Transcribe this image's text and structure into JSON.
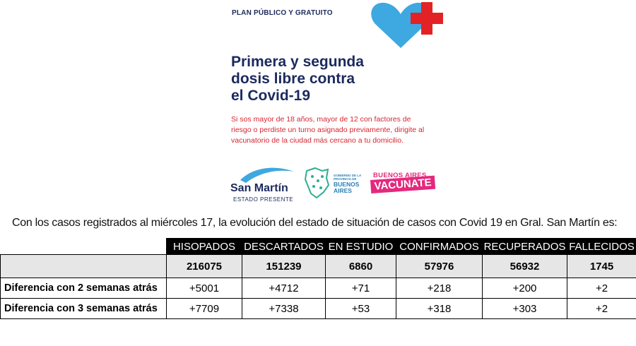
{
  "poster": {
    "plan_label": "PLAN PÚBLICO Y GRATUITO",
    "headline_lines": [
      "Primera y segunda",
      "dosis libre contra",
      "el Covid-19"
    ],
    "subtext_lines": [
      "Si sos mayor de 18 años, mayor de 12 con factores de",
      "riesgo o perdiste un turno asignado previamente, dirigite al",
      "vacunatorio de la ciudad más cercano a tu domicilio."
    ],
    "logos": {
      "san_martin": {
        "name": "San Martín",
        "tagline": "ESTADO PRESENTE"
      },
      "province": {
        "gov_lines": [
          "GOBIERNO DE LA",
          "PROVINCIA DE"
        ],
        "name_lines": [
          "BUENOS",
          "AIRES"
        ]
      },
      "vacunate": {
        "top": "BUENOS AIRES",
        "main": "VACUNATE"
      }
    },
    "colors": {
      "navy": "#1b2a5e",
      "red": "#d7262f",
      "heart_blue": "#3ea8e0",
      "cross_red": "#e32226",
      "pink": "#e4297d"
    }
  },
  "caption": "Con los casos registrados al  miércoles 17, la evolución del  estado de situación de casos con Covid 19 en Gral. San Martín es:",
  "table": {
    "columns": [
      "HISOPADOS",
      "DESCARTADOS",
      "EN ESTUDIO",
      "CONFIRMADOS",
      "RECUPERADOS",
      "FALLECIDOS"
    ],
    "totals": [
      "216075",
      "151239",
      "6860",
      "57976",
      "56932",
      "1745"
    ],
    "rows": [
      {
        "label": "Diferencia con 2 semanas atrás",
        "values": [
          "+5001",
          "+4712",
          "+71",
          "+218",
          "+200",
          "+2"
        ]
      },
      {
        "label": "Diferencia con 3 semanas atrás",
        "values": [
          "+7709",
          "+7338",
          "+53",
          "+318",
          "+303",
          "+2"
        ]
      }
    ]
  }
}
